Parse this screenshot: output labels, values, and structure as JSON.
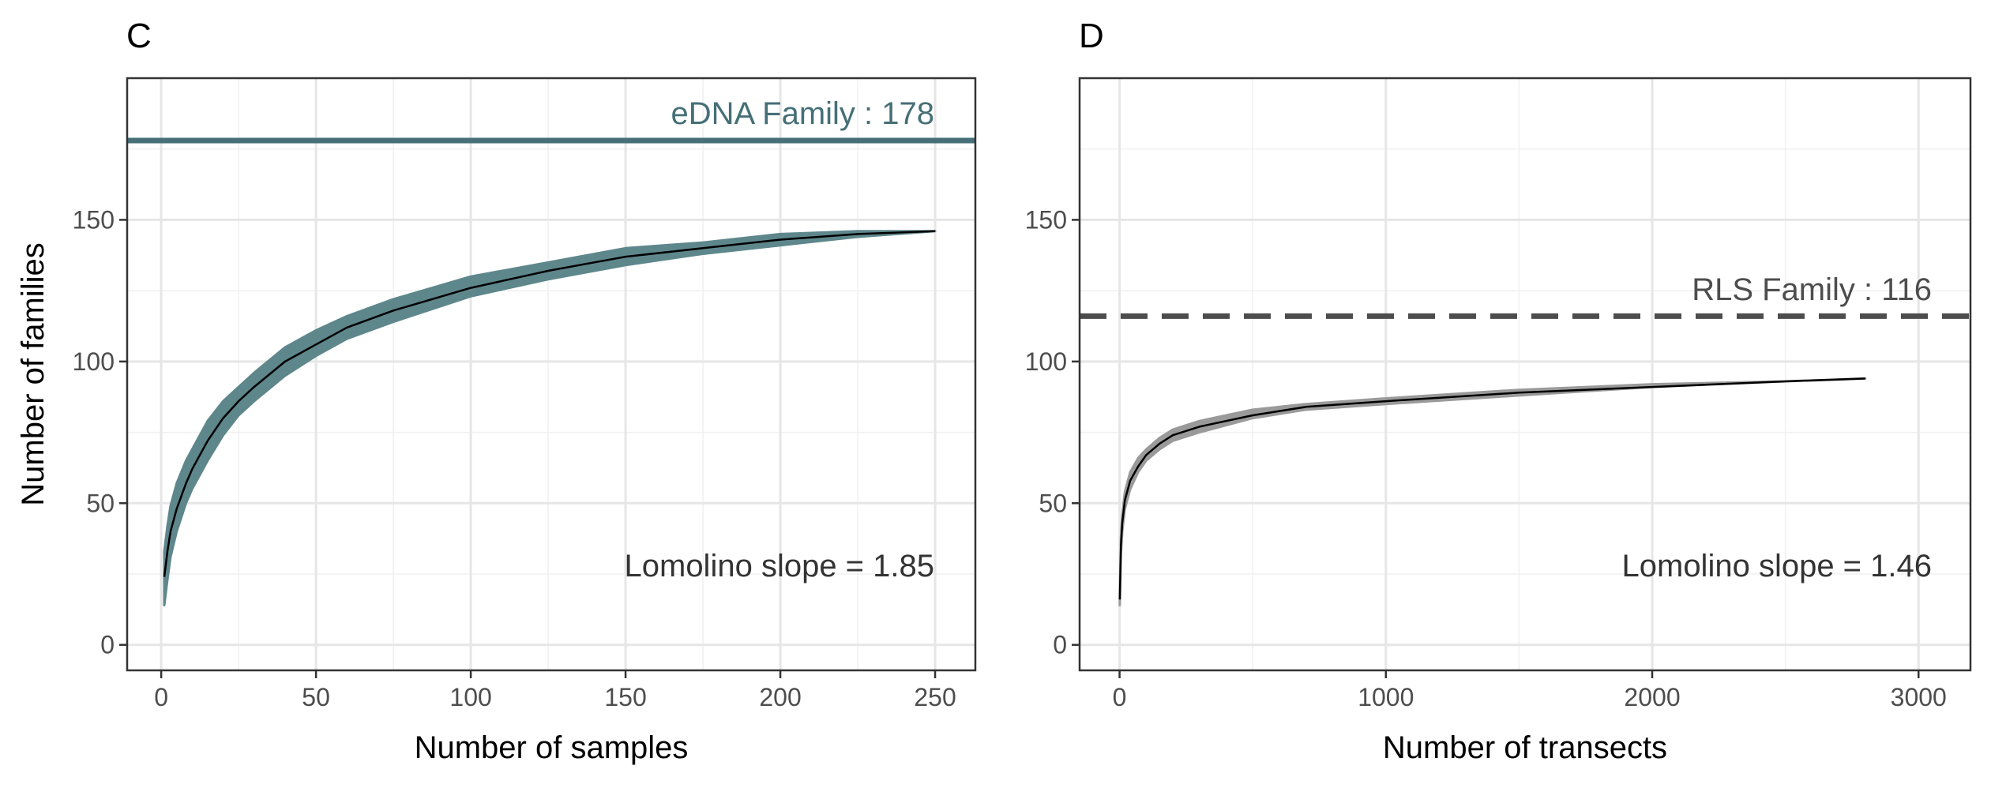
{
  "chart_data": [
    {
      "panel": "C",
      "type": "line",
      "xlabel": "Number of samples",
      "ylabel": "Number of families",
      "xlim": [
        -11,
        263
      ],
      "ylim": [
        -9,
        200
      ],
      "x_ticks": [
        0,
        50,
        100,
        150,
        200,
        250
      ],
      "y_ticks": [
        0,
        50,
        100,
        150
      ],
      "grid": true,
      "series": [
        {
          "role": "accumulation curve",
          "color": "#000000",
          "band_color": "#5e878c",
          "x": [
            1,
            2,
            3,
            5,
            8,
            10,
            15,
            20,
            25,
            30,
            40,
            50,
            60,
            75,
            100,
            125,
            150,
            175,
            200,
            225,
            250
          ],
          "y": [
            24,
            33,
            40,
            48,
            57,
            62,
            72,
            80,
            86,
            91,
            100,
            106,
            112,
            118,
            126,
            132,
            137,
            140,
            143,
            145,
            146
          ],
          "lower": [
            14,
            23,
            31,
            40,
            50,
            55,
            65,
            74,
            81,
            86,
            95,
            102,
            108,
            114,
            123,
            129,
            134,
            138,
            141,
            144,
            146
          ],
          "upper": [
            33,
            42,
            49,
            57,
            65,
            69,
            79,
            86,
            91,
            96,
            105,
            111,
            116,
            122,
            130,
            135,
            140,
            142,
            145,
            146,
            146
          ]
        }
      ],
      "reference_line": {
        "y": 178,
        "style": "solid",
        "color": "#466f77",
        "label": "eDNA Family : 178"
      },
      "annotation": "Lomolino slope = 1.85"
    },
    {
      "panel": "D",
      "type": "line",
      "xlabel": "Number of transects",
      "ylabel": "",
      "xlim": [
        -150,
        3195
      ],
      "ylim": [
        -9,
        200
      ],
      "x_ticks": [
        0,
        1000,
        2000,
        3000
      ],
      "y_ticks": [
        0,
        50,
        100,
        150
      ],
      "grid": true,
      "series": [
        {
          "role": "accumulation curve",
          "color": "#000000",
          "band_color": "#9a9a9a",
          "x": [
            1,
            5,
            10,
            20,
            40,
            70,
            100,
            150,
            200,
            300,
            500,
            700,
            1000,
            1500,
            2000,
            2500,
            2800
          ],
          "y": [
            16,
            35,
            43,
            51,
            58,
            63,
            67,
            71,
            74,
            77,
            81,
            84,
            86,
            89,
            91,
            93,
            94
          ],
          "lower": [
            14,
            32,
            40,
            48,
            55,
            61,
            65,
            69,
            72,
            75,
            80,
            83,
            85,
            88,
            91,
            93,
            94
          ],
          "upper": [
            18,
            38,
            46,
            54,
            61,
            66,
            69,
            73,
            76,
            79,
            83,
            85,
            87,
            90,
            92,
            93,
            94
          ]
        }
      ],
      "reference_line": {
        "y": 116,
        "style": "dashed",
        "color": "#4d4d4d",
        "label": "RLS Family : 116"
      },
      "annotation": "Lomolino slope = 1.46"
    }
  ]
}
